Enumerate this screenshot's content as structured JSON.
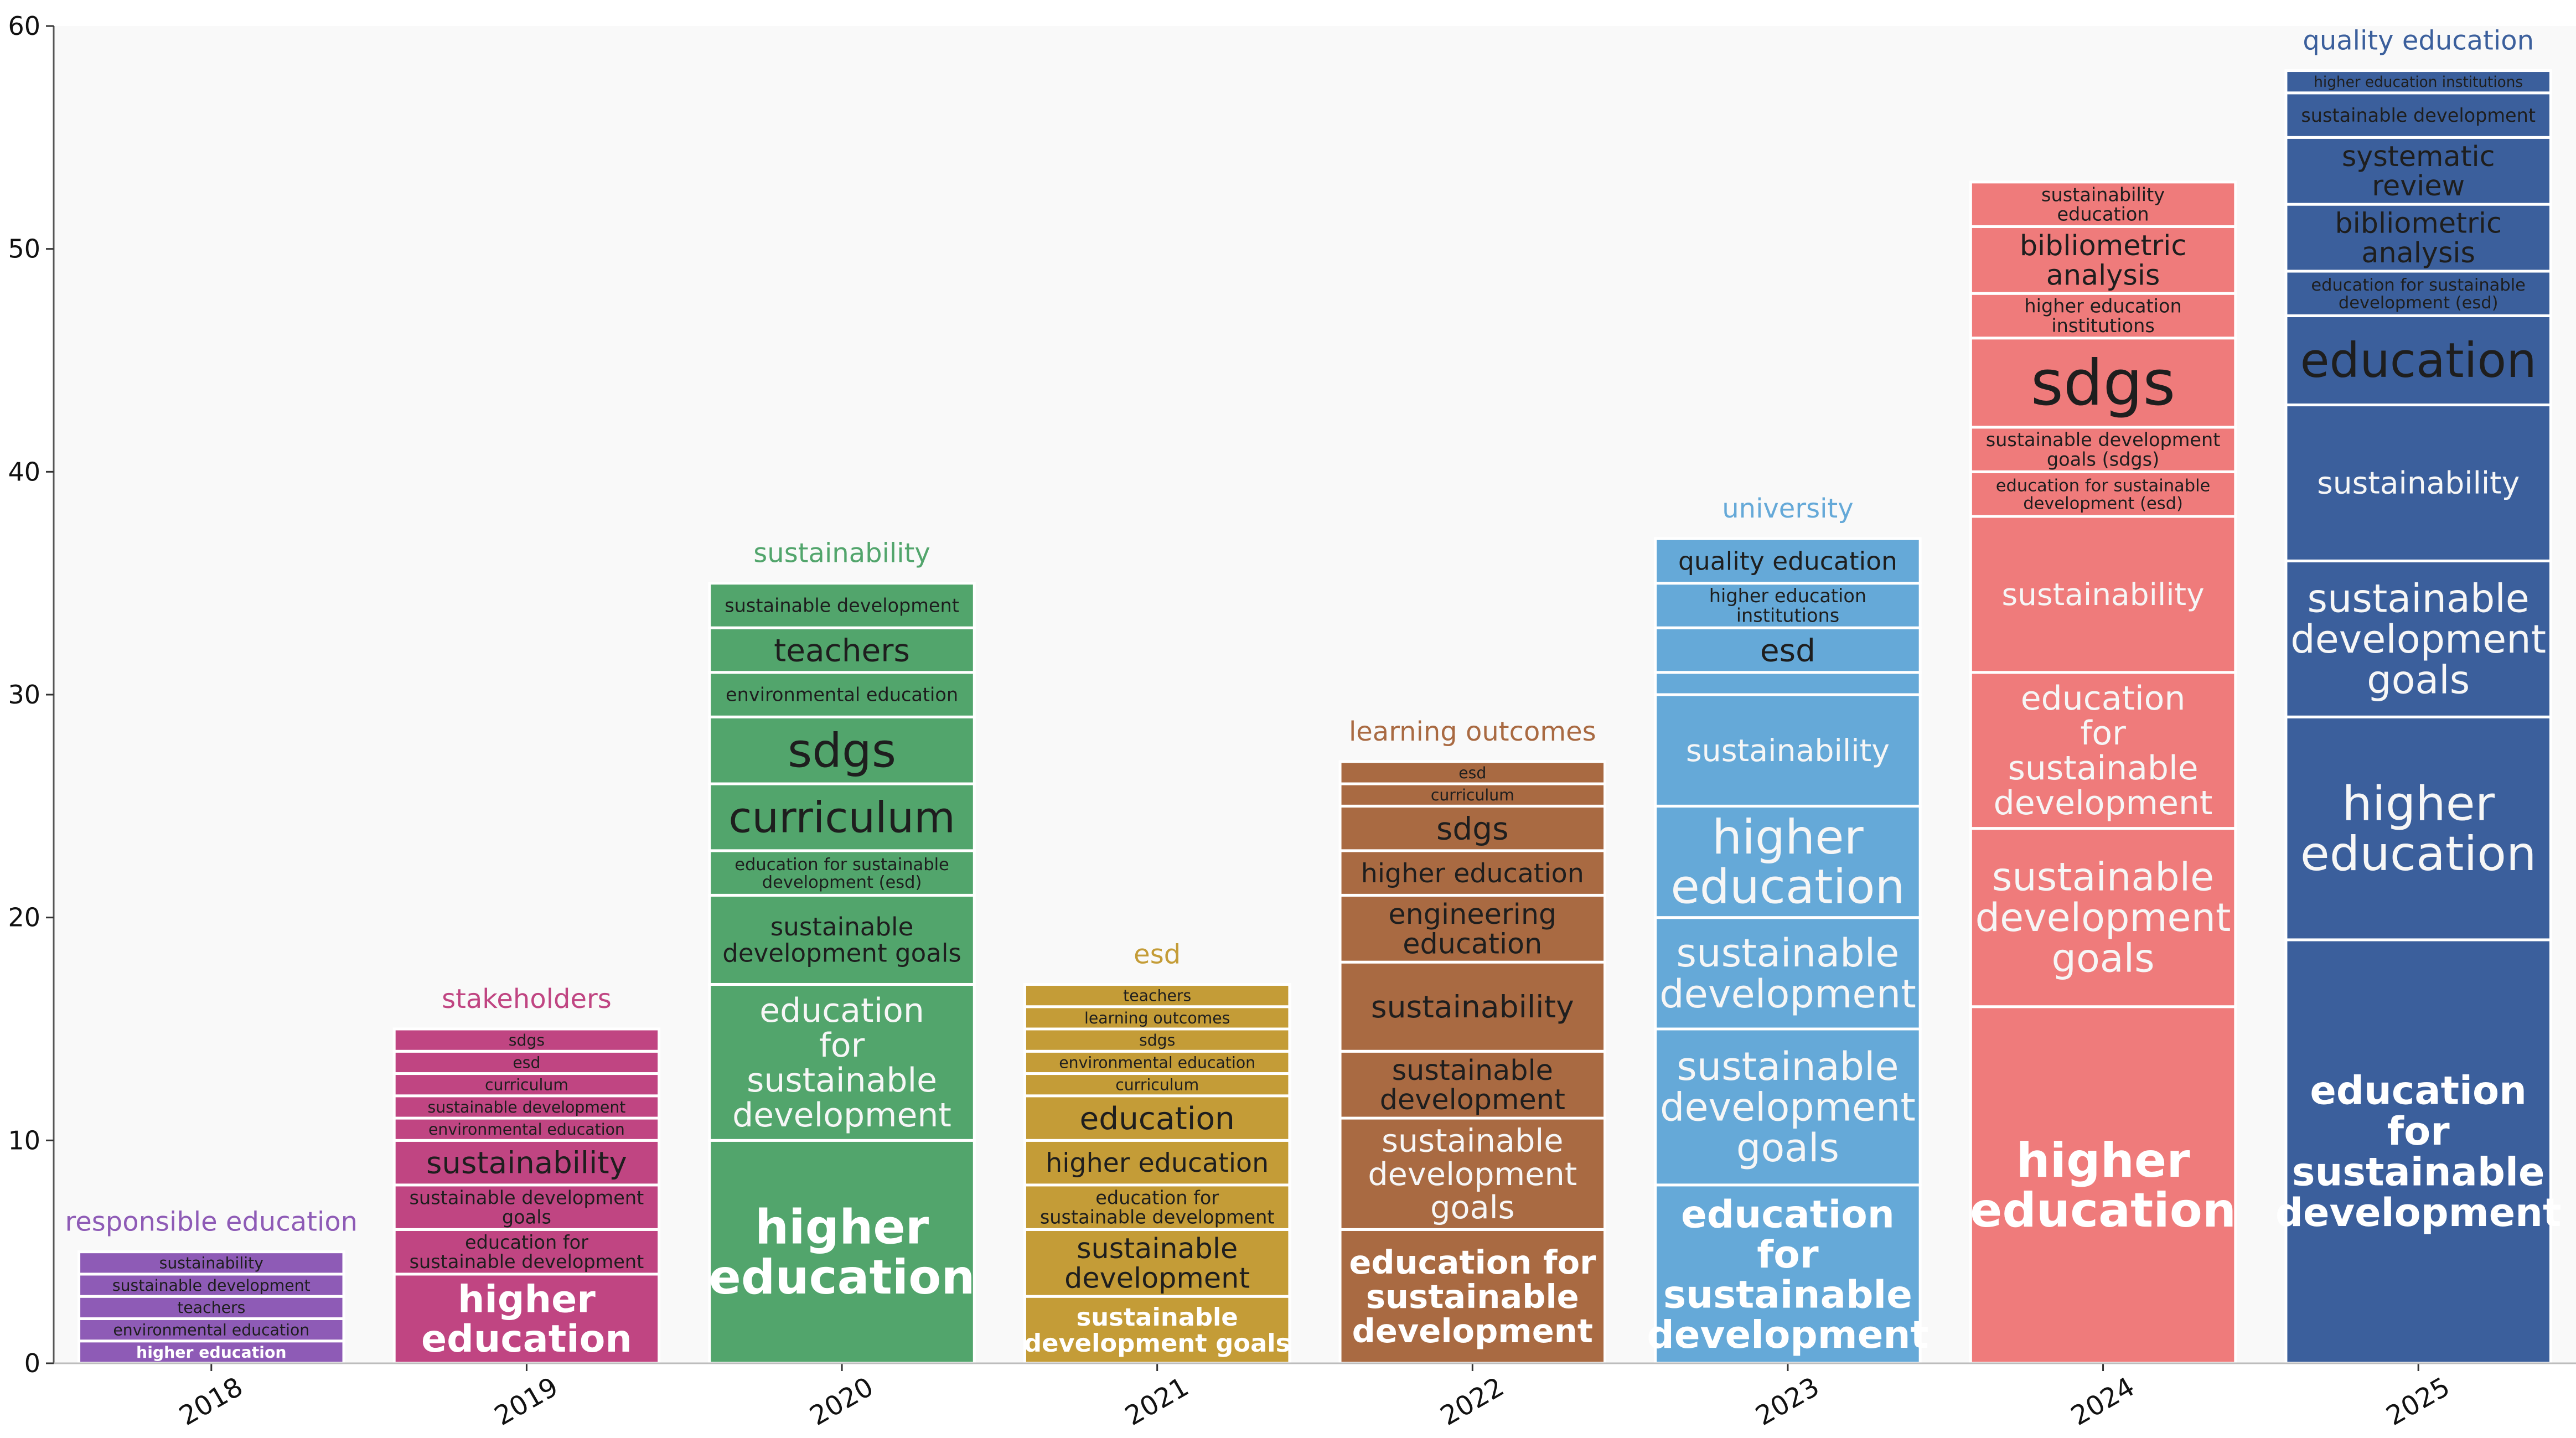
{
  "chart_data": {
    "type": "bar",
    "stacked": true,
    "title": "",
    "xlabel": "",
    "ylabel": "",
    "ylim": [
      0,
      60
    ],
    "yticks": [
      0,
      10,
      20,
      30,
      40,
      50,
      60
    ],
    "grid": false,
    "categories": [
      "2018",
      "2019",
      "2020",
      "2021",
      "2022",
      "2023",
      "2024",
      "2025"
    ],
    "years": [
      {
        "year": "2018",
        "color": "#8e5bb6",
        "top_label": "responsible education",
        "segments": [
          {
            "label": "higher education",
            "value": 1
          },
          {
            "label": "environmental education",
            "value": 1
          },
          {
            "label": "teachers",
            "value": 1
          },
          {
            "label": "sustainable development",
            "value": 1
          },
          {
            "label": "sustainability",
            "value": 1
          }
        ]
      },
      {
        "year": "2019",
        "color": "#c04582",
        "top_label": "stakeholders",
        "segments": [
          {
            "label": "higher education",
            "value": 4
          },
          {
            "label": "education for sustainable development",
            "value": 2
          },
          {
            "label": "sustainable development goals",
            "value": 2
          },
          {
            "label": "sustainability",
            "value": 2
          },
          {
            "label": "environmental education",
            "value": 1
          },
          {
            "label": "sustainable development",
            "value": 1
          },
          {
            "label": "curriculum",
            "value": 1
          },
          {
            "label": "esd",
            "value": 1
          },
          {
            "label": "sdgs",
            "value": 1
          }
        ]
      },
      {
        "year": "2020",
        "color": "#52a56c",
        "top_label": "sustainability",
        "segments": [
          {
            "label": "higher education",
            "value": 10
          },
          {
            "label": "education for sustainable development",
            "value": 7
          },
          {
            "label": "sustainable development goals",
            "value": 4
          },
          {
            "label": "education for sustainable development (esd)",
            "value": 2
          },
          {
            "label": "curriculum",
            "value": 3
          },
          {
            "label": "sdgs",
            "value": 3
          },
          {
            "label": "environmental education",
            "value": 2
          },
          {
            "label": "teachers",
            "value": 2
          },
          {
            "label": "sustainable development",
            "value": 2
          }
        ]
      },
      {
        "year": "2021",
        "color": "#c49c37",
        "top_label": "esd",
        "segments": [
          {
            "label": "sustainable development goals",
            "value": 3
          },
          {
            "label": "sustainable development",
            "value": 3
          },
          {
            "label": "education for sustainable development",
            "value": 2
          },
          {
            "label": "higher education",
            "value": 2
          },
          {
            "label": "education",
            "value": 2
          },
          {
            "label": "curriculum",
            "value": 1
          },
          {
            "label": "environmental education",
            "value": 1
          },
          {
            "label": "sdgs",
            "value": 1
          },
          {
            "label": "learning outcomes",
            "value": 1
          },
          {
            "label": "teachers",
            "value": 1
          }
        ]
      },
      {
        "year": "2022",
        "color": "#a96a42",
        "top_label": "learning outcomes",
        "segments": [
          {
            "label": "education for sustainable development",
            "value": 6
          },
          {
            "label": "sustainable development goals",
            "value": 5
          },
          {
            "label": "sustainable development",
            "value": 3
          },
          {
            "label": "sustainability",
            "value": 4
          },
          {
            "label": "engineering education",
            "value": 3
          },
          {
            "label": "higher education",
            "value": 2
          },
          {
            "label": "sdgs",
            "value": 2
          },
          {
            "label": "curriculum",
            "value": 1
          },
          {
            "label": "esd",
            "value": 1
          }
        ]
      },
      {
        "year": "2023",
        "color": "#65a9d8",
        "top_label": "university",
        "segments": [
          {
            "label": "education for sustainable development",
            "value": 8
          },
          {
            "label": "sustainable development goals",
            "value": 7
          },
          {
            "label": "sustainable development",
            "value": 5
          },
          {
            "label": "higher education",
            "value": 5
          },
          {
            "label": "sustainability",
            "value": 5
          },
          {
            "label": "",
            "value": 1
          },
          {
            "label": "esd",
            "value": 2
          },
          {
            "label": "higher education institutions",
            "value": 2
          },
          {
            "label": "quality education",
            "value": 2
          }
        ]
      },
      {
        "year": "2024",
        "color": "#ef7b7b",
        "top_label": "",
        "segments": [
          {
            "label": "higher education",
            "value": 16
          },
          {
            "label": "sustainable development goals",
            "value": 8
          },
          {
            "label": "education for sustainable development",
            "value": 7
          },
          {
            "label": "sustainability",
            "value": 7
          },
          {
            "label": "education for sustainable development (esd)",
            "value": 2
          },
          {
            "label": "sustainable development goals (sdgs)",
            "value": 2
          },
          {
            "label": "sdgs",
            "value": 4
          },
          {
            "label": "higher education institutions",
            "value": 2
          },
          {
            "label": "bibliometric analysis",
            "value": 3
          },
          {
            "label": "sustainability education",
            "value": 2
          }
        ]
      },
      {
        "year": "2025",
        "color": "#3b5f9c",
        "top_label": "quality education",
        "segments": [
          {
            "label": "education for sustainable development",
            "value": 19
          },
          {
            "label": "higher education",
            "value": 10
          },
          {
            "label": "sustainable development goals",
            "value": 7
          },
          {
            "label": "sustainability",
            "value": 7
          },
          {
            "label": "education",
            "value": 4
          },
          {
            "label": "education for sustainable development (esd)",
            "value": 2
          },
          {
            "label": "bibliometric analysis",
            "value": 3
          },
          {
            "label": "systematic review",
            "value": 3
          },
          {
            "label": "sustainable development",
            "value": 2
          },
          {
            "label": "higher education institutions",
            "value": 1
          }
        ]
      }
    ]
  }
}
